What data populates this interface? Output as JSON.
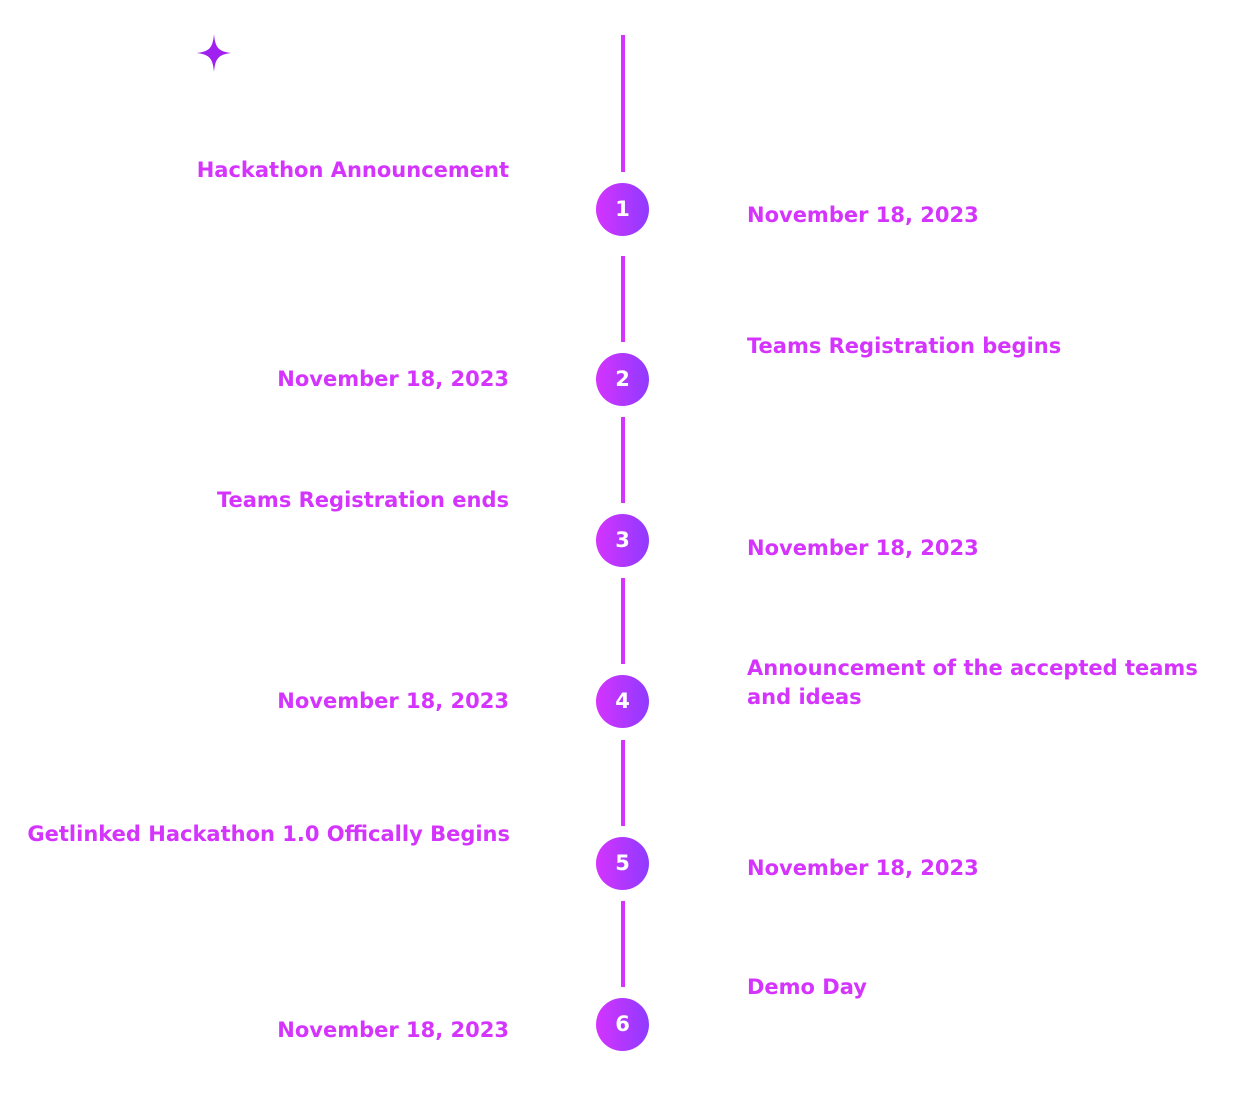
{
  "colors": {
    "accent": "#d434fe",
    "accent_end": "#903aff"
  },
  "decoration": {
    "star_icon": "four-point-star"
  },
  "milestones": [
    {
      "number": "1",
      "title": "Hackathon Announcement",
      "date": "November 18, 2023"
    },
    {
      "number": "2",
      "title": "Teams Registration begins",
      "date": "November 18, 2023"
    },
    {
      "number": "3",
      "title": "Teams Registration ends",
      "date": "November 18, 2023"
    },
    {
      "number": "4",
      "title": "Announcement of the accepted teams and ideas",
      "date": "November 18, 2023"
    },
    {
      "number": "5",
      "title": "Getlinked Hackathon 1.0 Offically Begins",
      "date": "November 18, 2023"
    },
    {
      "number": "6",
      "title": "Demo Day",
      "date": "November 18, 2023"
    }
  ]
}
